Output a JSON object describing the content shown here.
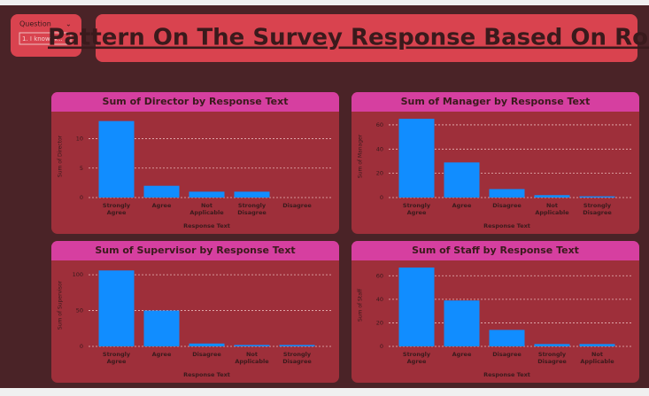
{
  "header": {
    "title": "Pattern On The Survey Response Based On Roles",
    "slicer_label": "Question",
    "slicer_value": "1. I know w..."
  },
  "chart_data": [
    {
      "type": "bar",
      "title": "Sum of Director by Response Text",
      "x_label": "Response Text",
      "y_label": "Sum of Director",
      "categories": [
        "Strongly Agree",
        "Agree",
        "Not Applicable",
        "Strongly Disagree",
        "Disagree"
      ],
      "values": [
        13,
        2,
        1,
        1,
        0
      ],
      "color": "#118dff",
      "ylim": [
        0,
        14
      ],
      "yticks": [
        0,
        5,
        10
      ],
      "grid": true
    },
    {
      "type": "bar",
      "title": "Sum of Manager by Response Text",
      "x_label": "Response Text",
      "y_label": "Sum of Manager",
      "categories": [
        "Strongly Agree",
        "Agree",
        "Disagree",
        "Not Applicable",
        "Strongly Disagree"
      ],
      "values": [
        65,
        29,
        7,
        2,
        1
      ],
      "color": "#118dff",
      "ylim": [
        0,
        68
      ],
      "yticks": [
        0,
        20,
        40,
        60
      ],
      "grid": true
    },
    {
      "type": "bar",
      "title": "Sum of Supervisor by Response Text",
      "x_label": "Response Text",
      "y_label": "Sum of Supervisor",
      "categories": [
        "Strongly Agree",
        "Agree",
        "Disagree",
        "Not Applicable",
        "Strongly Disagree"
      ],
      "values": [
        106,
        50,
        4,
        2,
        2
      ],
      "color": "#118dff",
      "ylim": [
        0,
        115
      ],
      "yticks": [
        0,
        50,
        100
      ],
      "grid": true
    },
    {
      "type": "bar",
      "title": "Sum of Staff by Response Text",
      "x_label": "Response Text",
      "y_label": "Sum of Staff",
      "categories": [
        "Strongly Agree",
        "Agree",
        "Disagree",
        "Strongly Disagree",
        "Not Applicable"
      ],
      "values": [
        67,
        39,
        14,
        2,
        2
      ],
      "color": "#118dff",
      "ylim": [
        0,
        70
      ],
      "yticks": [
        0,
        20,
        40,
        60
      ],
      "grid": true
    }
  ]
}
